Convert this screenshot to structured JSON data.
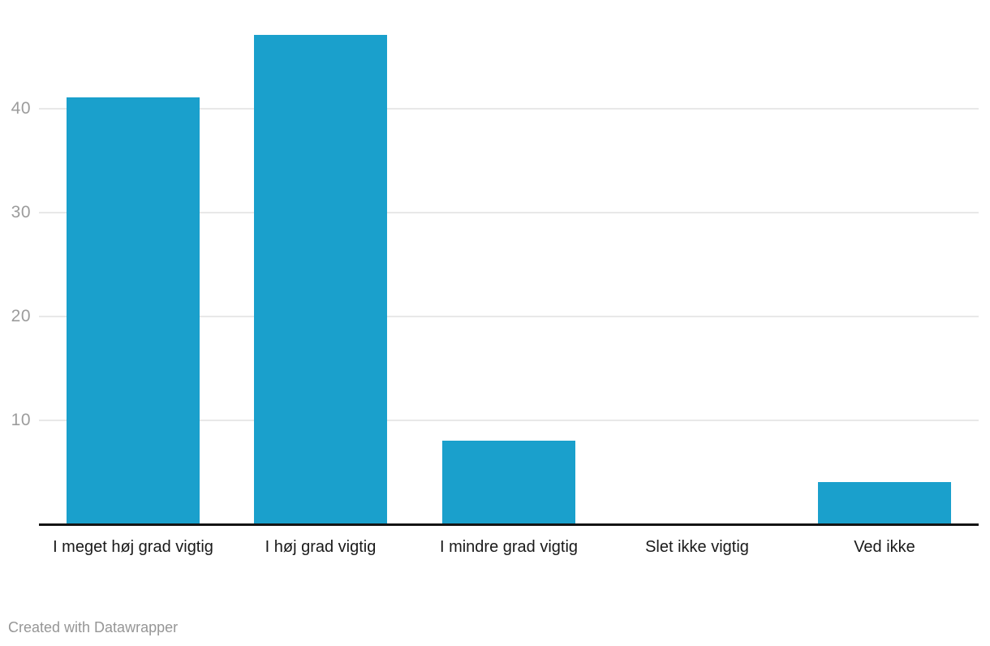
{
  "chart_data": {
    "type": "bar",
    "categories": [
      "I meget høj grad vigtig",
      "I høj grad vigtig",
      "I mindre grad vigtig",
      "Slet ikke vigtig",
      "Ved ikke"
    ],
    "values": [
      41,
      47,
      8,
      0,
      4
    ],
    "title": "",
    "xlabel": "",
    "ylabel": "",
    "ylim": [
      0,
      48
    ],
    "yticks": [
      10,
      20,
      30,
      40
    ],
    "grid": true,
    "legend": false
  },
  "colors": {
    "bar": "#1AA0CC",
    "grid": "#e8e8e8",
    "axis": "#141414",
    "ytick_label": "#9c9c9c",
    "category_label": "#1a1a1a",
    "credit": "#969696",
    "background": "#ffffff"
  },
  "footer": {
    "credit": "Created with Datawrapper"
  }
}
